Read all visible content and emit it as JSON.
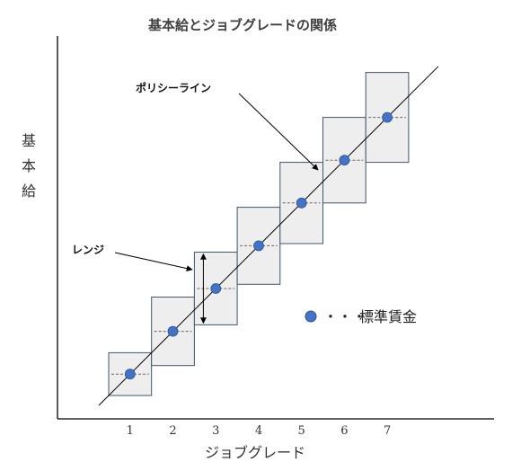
{
  "chart_data": {
    "type": "scatter",
    "title": "基本給とジョブグレードの関係",
    "ylabel": "基本給",
    "xlabel": "ジョブグレード",
    "categories": [
      "1",
      "2",
      "3",
      "4",
      "5",
      "6",
      "7"
    ],
    "midpoints": [
      0.5,
      1.5,
      2.5,
      3.5,
      4.5,
      5.5,
      6.5
    ],
    "ranges": [
      {
        "grade": "1",
        "min": 0.0,
        "max": 1.0
      },
      {
        "grade": "2",
        "min": 0.7,
        "max": 2.3
      },
      {
        "grade": "3",
        "min": 1.65,
        "max": 3.35
      },
      {
        "grade": "4",
        "min": 2.6,
        "max": 4.4
      },
      {
        "grade": "5",
        "min": 3.55,
        "max": 5.45
      },
      {
        "grade": "6",
        "min": 4.5,
        "max": 6.5
      },
      {
        "grade": "7",
        "min": 5.45,
        "max": 7.55
      }
    ],
    "annotations": {
      "policy_line": "ポリシーライン",
      "range": "レンジ"
    },
    "legend": {
      "marker_color": "#4472C4",
      "dots": "・・・",
      "label": "標準賃金",
      "placement": "right"
    },
    "colors": {
      "box_fill": "#EEEEEE",
      "box_stroke": "#44546A",
      "marker": "#4472C4",
      "axis": "#000000"
    },
    "grid": false
  }
}
